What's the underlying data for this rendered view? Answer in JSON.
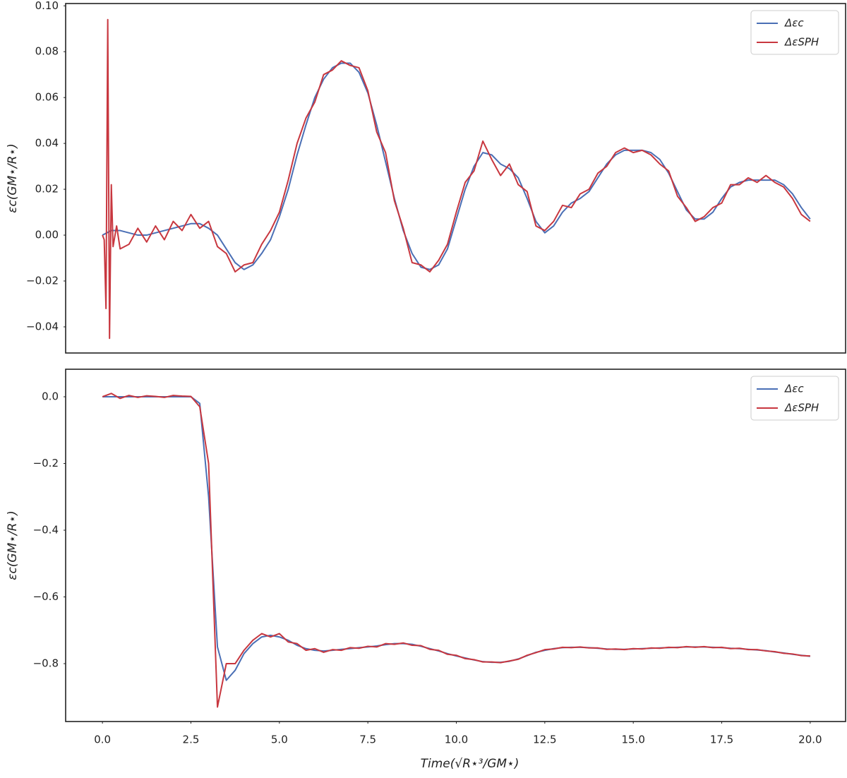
{
  "chart_data": [
    {
      "type": "line",
      "ylabel": "εc(GM⋆/R⋆)",
      "legend": "upper right",
      "xlim": [
        -1.04,
        21.0
      ],
      "ylim": [
        -0.0514,
        0.101
      ],
      "yticks": [
        {
          "value": 0.1,
          "label": "0.10"
        },
        {
          "value": 0.08,
          "label": "0.08"
        },
        {
          "value": 0.06,
          "label": "0.06"
        },
        {
          "value": 0.04,
          "label": "0.04"
        },
        {
          "value": 0.02,
          "label": "0.02"
        },
        {
          "value": 0,
          "label": "0.00"
        },
        {
          "value": -0.02,
          "label": "−0.02"
        },
        {
          "value": -0.04,
          "label": "−0.04"
        }
      ],
      "x": [
        0,
        0.25,
        0.5,
        0.75,
        1,
        1.25,
        1.5,
        1.75,
        2,
        2.25,
        2.5,
        2.75,
        3,
        3.25,
        3.5,
        3.75,
        4,
        4.25,
        4.5,
        4.75,
        5,
        5.25,
        5.5,
        5.75,
        6,
        6.25,
        6.5,
        6.75,
        7,
        7.25,
        7.5,
        7.75,
        8,
        8.25,
        8.5,
        8.75,
        9,
        9.25,
        9.5,
        9.75,
        10,
        10.25,
        10.5,
        10.75,
        11,
        11.25,
        11.5,
        11.75,
        12,
        12.25,
        12.5,
        12.75,
        13,
        13.25,
        13.5,
        13.75,
        14,
        14.25,
        14.5,
        14.75,
        15,
        15.25,
        15.5,
        15.75,
        16,
        16.25,
        16.5,
        16.75,
        17,
        17.25,
        17.5,
        17.75,
        18,
        18.25,
        18.5,
        18.75,
        19,
        19.25,
        19.5,
        19.75,
        20
      ],
      "series": [
        {
          "name": "Δεc",
          "color": "#4a6fb5",
          "values": [
            0,
            0.002,
            0.002,
            0.001,
            0,
            0,
            0.001,
            0.002,
            0.003,
            0.004,
            0.005,
            0.005,
            0.003,
            0,
            -0.006,
            -0.012,
            -0.015,
            -0.013,
            -0.008,
            -0.002,
            0.008,
            0.02,
            0.035,
            0.048,
            0.06,
            0.068,
            0.073,
            0.075,
            0.075,
            0.071,
            0.062,
            0.048,
            0.032,
            0.016,
            0.002,
            -0.008,
            -0.014,
            -0.015,
            -0.013,
            -0.006,
            0.007,
            0.02,
            0.03,
            0.036,
            0.035,
            0.031,
            0.029,
            0.025,
            0.016,
            0.006,
            0.001,
            0.004,
            0.01,
            0.014,
            0.016,
            0.019,
            0.025,
            0.031,
            0.035,
            0.037,
            0.037,
            0.037,
            0.036,
            0.033,
            0.027,
            0.019,
            0.011,
            0.007,
            0.007,
            0.01,
            0.016,
            0.021,
            0.023,
            0.024,
            0.024,
            0.024,
            0.024,
            0.022,
            0.018,
            0.012,
            0.007
          ]
        },
        {
          "name": "ΔεSPH",
          "color": "#c8373f",
          "x": [
            0,
            0.05,
            0.1,
            0.15,
            0.2,
            0.25,
            0.3,
            0.4,
            0.5,
            0.75,
            1,
            1.25,
            1.5,
            1.75,
            2,
            2.25,
            2.5,
            2.75,
            3,
            3.25,
            3.5,
            3.75,
            4,
            4.25,
            4.5,
            4.75,
            5,
            5.25,
            5.5,
            5.75,
            6,
            6.25,
            6.5,
            6.75,
            7,
            7.25,
            7.5,
            7.75,
            8,
            8.25,
            8.5,
            8.75,
            9,
            9.25,
            9.5,
            9.75,
            10,
            10.25,
            10.5,
            10.75,
            11,
            11.25,
            11.5,
            11.75,
            12,
            12.25,
            12.5,
            12.75,
            13,
            13.25,
            13.5,
            13.75,
            14,
            14.25,
            14.5,
            14.75,
            15,
            15.25,
            15.5,
            15.75,
            16,
            16.25,
            16.5,
            16.75,
            17,
            17.25,
            17.5,
            17.75,
            18,
            18.25,
            18.5,
            18.75,
            19,
            19.25,
            19.5,
            19.75,
            20
          ],
          "values": [
            0,
            -0.002,
            -0.032,
            0.094,
            -0.045,
            0.022,
            -0.005,
            0.004,
            -0.006,
            -0.004,
            0.003,
            -0.003,
            0.004,
            -0.002,
            0.006,
            0.002,
            0.009,
            0.003,
            0.006,
            -0.005,
            -0.008,
            -0.016,
            -0.013,
            -0.012,
            -0.004,
            0.002,
            0.01,
            0.024,
            0.04,
            0.051,
            0.058,
            0.07,
            0.072,
            0.076,
            0.074,
            0.073,
            0.063,
            0.045,
            0.036,
            0.015,
            0.003,
            -0.012,
            -0.013,
            -0.016,
            -0.011,
            -0.004,
            0.01,
            0.023,
            0.028,
            0.041,
            0.033,
            0.026,
            0.031,
            0.022,
            0.019,
            0.004,
            0.002,
            0.006,
            0.013,
            0.012,
            0.018,
            0.02,
            0.027,
            0.03,
            0.036,
            0.038,
            0.036,
            0.037,
            0.035,
            0.031,
            0.028,
            0.017,
            0.012,
            0.006,
            0.008,
            0.012,
            0.014,
            0.022,
            0.022,
            0.025,
            0.023,
            0.026,
            0.023,
            0.021,
            0.016,
            0.009,
            0.006
          ]
        }
      ]
    },
    {
      "type": "line",
      "ylabel": "εc(GM⋆/R⋆)",
      "xlabel": "Time(√R⋆³/GM⋆)",
      "legend": "upper right",
      "xlim": [
        -1.04,
        21.0
      ],
      "ylim": [
        -0.9735,
        0.0825
      ],
      "xticks": [
        {
          "value": 0,
          "label": "0.0"
        },
        2.5,
        {
          "value": 5,
          "label": "5.0"
        },
        7.5,
        {
          "value": 10,
          "label": "10.0"
        },
        12.5,
        {
          "value": 15,
          "label": "15.0"
        },
        17.5,
        {
          "value": 20,
          "label": "20.0"
        }
      ],
      "yticks": [
        {
          "value": 0,
          "label": "0.0"
        },
        {
          "value": -0.2,
          "label": "−0.2"
        },
        {
          "value": -0.4,
          "label": "−0.4"
        },
        {
          "value": -0.6,
          "label": "−0.6"
        },
        {
          "value": -0.8,
          "label": "−0.8"
        }
      ],
      "x": [
        0,
        0.25,
        0.5,
        0.75,
        1,
        1.25,
        1.5,
        1.75,
        2,
        2.25,
        2.5,
        2.75,
        3,
        3.25,
        3.5,
        3.75,
        4,
        4.25,
        4.5,
        4.75,
        5,
        5.25,
        5.5,
        5.75,
        6,
        6.25,
        6.5,
        6.75,
        7,
        7.25,
        7.5,
        7.75,
        8,
        8.25,
        8.5,
        8.75,
        9,
        9.25,
        9.5,
        9.75,
        10,
        10.25,
        10.5,
        10.75,
        11,
        11.25,
        11.5,
        11.75,
        12,
        12.25,
        12.5,
        12.75,
        13,
        13.25,
        13.5,
        13.75,
        14,
        14.25,
        14.5,
        14.75,
        15,
        15.25,
        15.5,
        15.75,
        16,
        16.25,
        16.5,
        16.75,
        17,
        17.25,
        17.5,
        17.75,
        18,
        18.25,
        18.5,
        18.75,
        19,
        19.25,
        19.5,
        19.75,
        20
      ],
      "series": [
        {
          "name": "Δεc",
          "color": "#4a6fb5",
          "values": [
            0,
            0,
            0,
            0,
            0,
            0,
            0,
            0,
            0,
            0,
            0,
            -0.02,
            -0.3,
            -0.75,
            -0.85,
            -0.82,
            -0.77,
            -0.74,
            -0.72,
            -0.715,
            -0.72,
            -0.73,
            -0.745,
            -0.755,
            -0.76,
            -0.762,
            -0.76,
            -0.757,
            -0.755,
            -0.752,
            -0.75,
            -0.747,
            -0.743,
            -0.74,
            -0.74,
            -0.742,
            -0.748,
            -0.755,
            -0.762,
            -0.77,
            -0.777,
            -0.783,
            -0.789,
            -0.794,
            -0.796,
            -0.796,
            -0.793,
            -0.786,
            -0.776,
            -0.766,
            -0.76,
            -0.755,
            -0.752,
            -0.751,
            -0.751,
            -0.752,
            -0.754,
            -0.756,
            -0.757,
            -0.757,
            -0.756,
            -0.755,
            -0.754,
            -0.753,
            -0.752,
            -0.751,
            -0.75,
            -0.75,
            -0.75,
            -0.751,
            -0.752,
            -0.754,
            -0.755,
            -0.757,
            -0.759,
            -0.761,
            -0.765,
            -0.768,
            -0.772,
            -0.775,
            -0.778
          ]
        },
        {
          "name": "ΔεSPH",
          "color": "#c8373f",
          "values": [
            0,
            0.01,
            -0.005,
            0.004,
            -0.002,
            0.003,
            0.001,
            -0.002,
            0.004,
            0.002,
            0.001,
            -0.03,
            -0.2,
            -0.93,
            -0.8,
            -0.8,
            -0.76,
            -0.73,
            -0.71,
            -0.72,
            -0.71,
            -0.735,
            -0.74,
            -0.76,
            -0.755,
            -0.766,
            -0.758,
            -0.76,
            -0.752,
            -0.754,
            -0.748,
            -0.75,
            -0.74,
            -0.742,
            -0.738,
            -0.745,
            -0.746,
            -0.757,
            -0.76,
            -0.772,
            -0.775,
            -0.785,
            -0.788,
            -0.795,
            -0.795,
            -0.797,
            -0.792,
            -0.787,
            -0.775,
            -0.767,
            -0.758,
            -0.756,
            -0.751,
            -0.752,
            -0.75,
            -0.753,
            -0.753,
            -0.757,
            -0.756,
            -0.758,
            -0.755,
            -0.756,
            -0.753,
            -0.754,
            -0.751,
            -0.752,
            -0.749,
            -0.751,
            -0.749,
            -0.752,
            -0.751,
            -0.755,
            -0.754,
            -0.758,
            -0.758,
            -0.762,
            -0.764,
            -0.769,
            -0.771,
            -0.776,
            -0.777
          ]
        }
      ]
    }
  ]
}
